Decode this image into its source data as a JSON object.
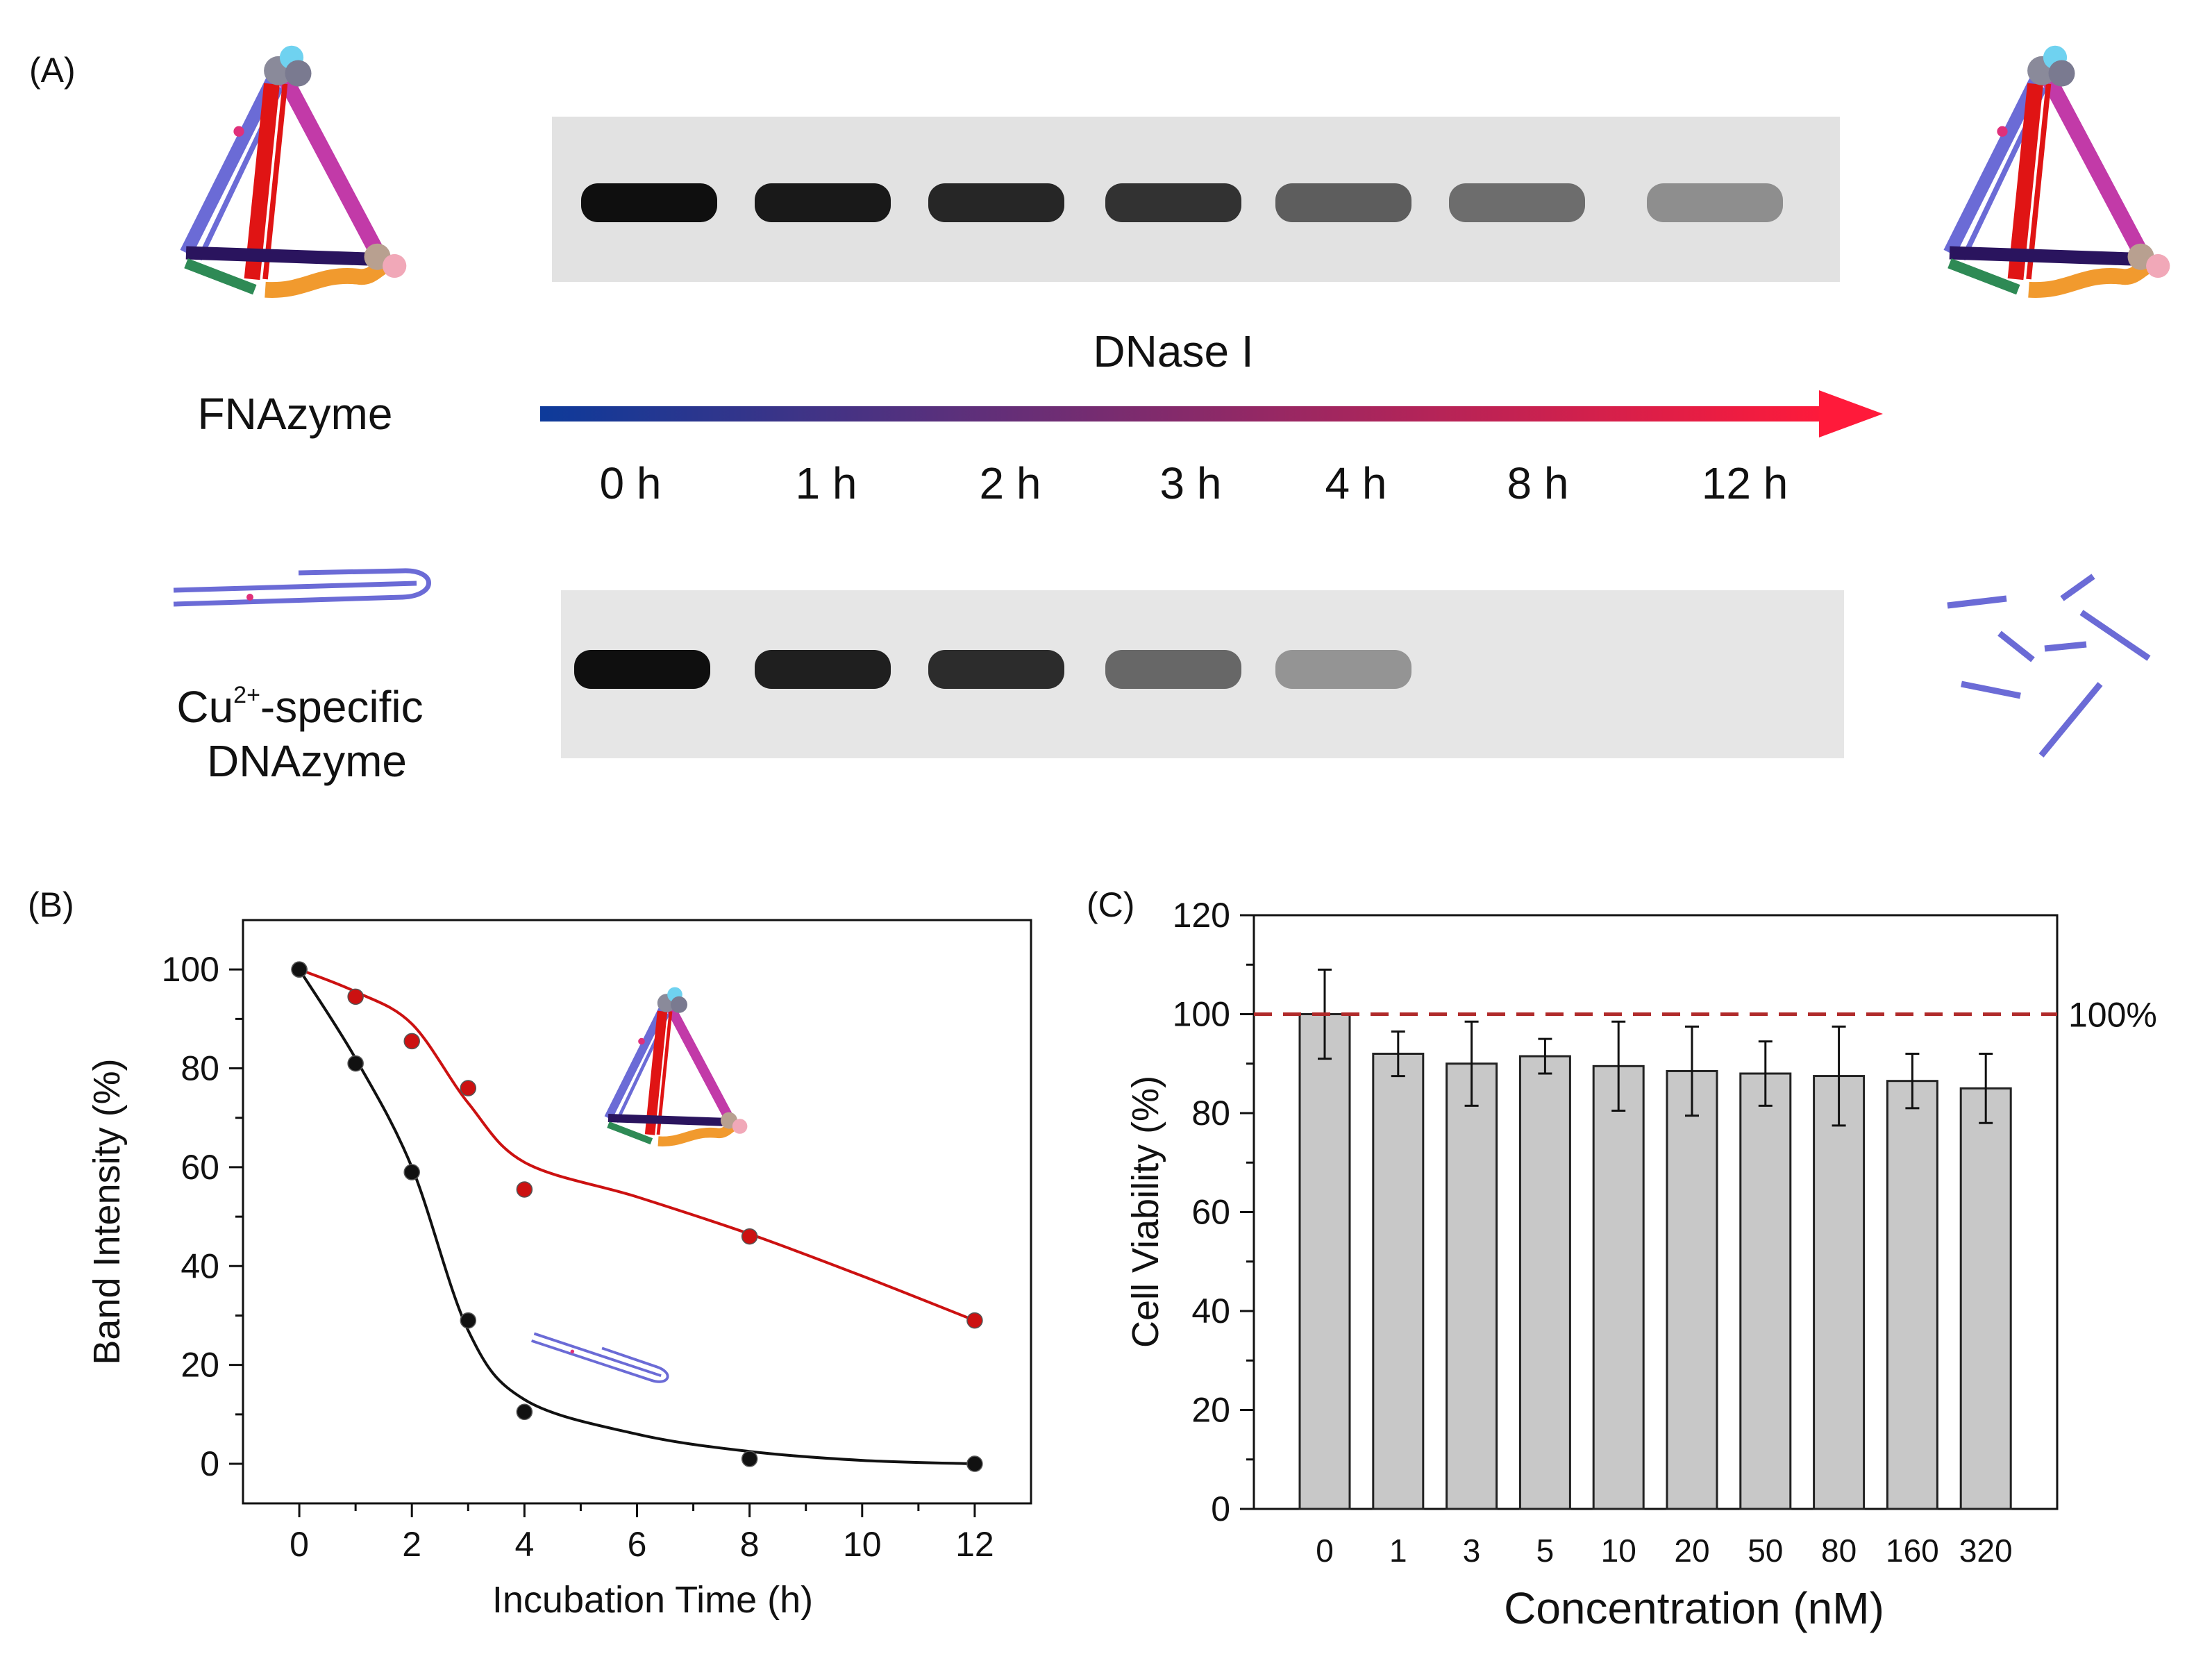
{
  "panel_a": {
    "label": "(A)",
    "top_name": "FNAzyme",
    "bottom_name_prefix": "Cu",
    "bottom_name_superscript": "2+",
    "bottom_name_suffix": "-specific",
    "bottom_name_line2": "DNAzyme",
    "arrow_label": "DNase I",
    "time_points": [
      "0 h",
      "1 h",
      "2 h",
      "3 h",
      "4 h",
      "8 h",
      "12 h"
    ],
    "top_gel_band_intensity": [
      1.0,
      0.95,
      0.88,
      0.82,
      0.6,
      0.52,
      0.35
    ],
    "bottom_gel_band_intensity": [
      1.0,
      0.92,
      0.85,
      0.55,
      0.32,
      0.0,
      0.0
    ],
    "colors": {
      "arrow_start": "#0d3a9a",
      "arrow_end": "#ff1a3a"
    }
  },
  "chart_data": [
    {
      "panel_label": "(B)",
      "type": "scatter",
      "title": "",
      "xlabel": "Incubation Time (h)",
      "ylabel": "Band Intensity (%)",
      "xlim": [
        -1,
        13
      ],
      "ylim": [
        -8,
        110
      ],
      "xticks": [
        0,
        2,
        4,
        6,
        8,
        10,
        12
      ],
      "yticks": [
        0,
        20,
        40,
        60,
        80,
        100
      ],
      "series": [
        {
          "name": "FNAzyme",
          "color": "#cc1111",
          "x": [
            0,
            1,
            2,
            3,
            4,
            8,
            12
          ],
          "y": [
            100,
            94.5,
            85.5,
            76,
            55.5,
            46,
            29
          ]
        },
        {
          "name": "Cu2+-specific DNAzyme",
          "color": "#111111",
          "x": [
            0,
            1,
            2,
            3,
            4,
            8,
            12
          ],
          "y": [
            100,
            81,
            59,
            29,
            10.5,
            1,
            0
          ]
        }
      ]
    },
    {
      "panel_label": "(C)",
      "type": "bar",
      "title": "",
      "xlabel": "Concentration (nM)",
      "ylabel": "Cell Viability (%)",
      "ylim": [
        0,
        120
      ],
      "yticks": [
        0,
        20,
        40,
        60,
        80,
        100,
        120
      ],
      "categories": [
        "0",
        "1",
        "3",
        "5",
        "10",
        "20",
        "50",
        "80",
        "160",
        "320"
      ],
      "values": [
        100,
        92,
        90,
        91.5,
        89.5,
        88.5,
        88,
        87.5,
        86.5,
        85
      ],
      "errors": [
        9,
        4.5,
        8.5,
        3.5,
        9,
        9,
        6.5,
        10,
        5.5,
        7
      ],
      "reference_line": {
        "value": 100,
        "label": "100%",
        "color": "#b02a2a"
      },
      "bar_color": "#c8c8c8"
    }
  ]
}
